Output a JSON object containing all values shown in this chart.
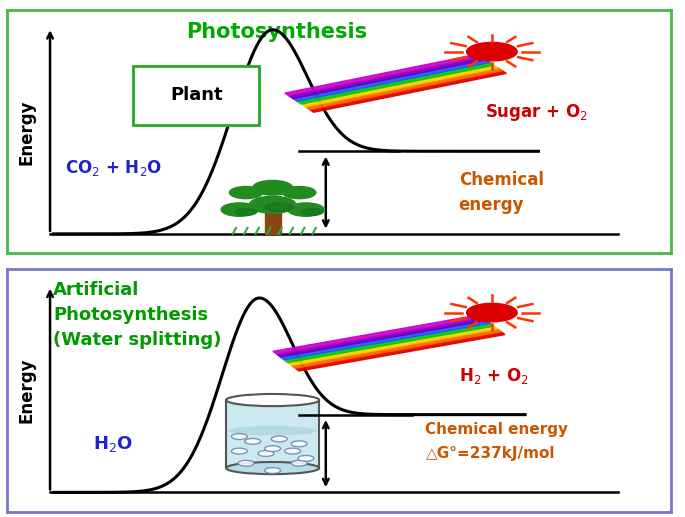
{
  "top_title": "Photosynthesis",
  "bottom_title": "Artificial\nPhotosynthesis\n(Water splitting)",
  "top_reactant": "CO$_2$ + H$_2$O",
  "top_product": "Sugar + O$_2$",
  "top_chem_label1": "Chemical",
  "top_chem_label2": "energy",
  "bottom_reactant": "H$_2$O",
  "bottom_product": "H$_2$ + O$_2$",
  "bottom_chem_label1": "Chemical energy",
  "bottom_chem_label2": "△G°=237kJ/mol",
  "plant_box_label": "Plant",
  "top_border": "#44bb44",
  "bottom_border": "#7777cc",
  "title_color_top": "#00aa00",
  "title_color_bottom": "#009900",
  "reactant_color": "#2222cc",
  "product_color": "#cc0000",
  "chem_energy_color": "#cc5500",
  "ylabel": "Energy",
  "beam_colors": [
    "#dd0000",
    "#ff6600",
    "#ffcc00",
    "#00cc00",
    "#2255ff",
    "#6600bb",
    "#cc00cc"
  ],
  "sun_color": "#dd0000",
  "sun_ray_color": "#ff3300"
}
